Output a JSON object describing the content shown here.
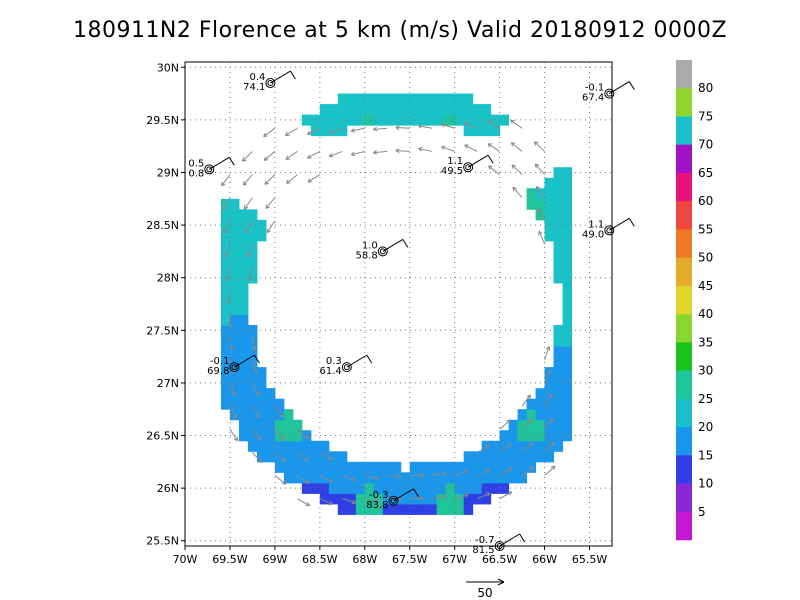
{
  "title": "180911N2 Florence at 5 km (m/s) Valid 20180912 0000Z",
  "map": {
    "lon_ticks": [
      "70W",
      "69.5W",
      "69W",
      "68.5W",
      "68W",
      "67.5W",
      "67W",
      "66.5W",
      "66W",
      "65.5W"
    ],
    "lat_ticks": [
      "25.5N",
      "26N",
      "26.5N",
      "27N",
      "27.5N",
      "28N",
      "28.5N",
      "29N",
      "29.5N",
      "30N"
    ],
    "lon_range": [
      -70,
      -65.25
    ],
    "lat_range": [
      25.45,
      30.05
    ],
    "grid": true
  },
  "colorbar": {
    "labels": [
      "5",
      "10",
      "15",
      "20",
      "25",
      "30",
      "35",
      "40",
      "45",
      "50",
      "55",
      "60",
      "65",
      "70",
      "75",
      "80"
    ],
    "colors": [
      "#c61ad0",
      "#8a28d8",
      "#2f3fe6",
      "#1897ec",
      "#18c0c8",
      "#1ec49a",
      "#1ac31a",
      "#8ad62e",
      "#e3d62a",
      "#e2ab2a",
      "#ee7a28",
      "#ee4640",
      "#e8127d",
      "#a011c5",
      "#1bc1c8",
      "#8ed62e",
      "#aaaaaa"
    ]
  },
  "stations": [
    {
      "lon": -69.05,
      "lat": 29.85,
      "top": "0.4",
      "bottom": "74.1"
    },
    {
      "lon": -69.73,
      "lat": 29.03,
      "top": "0.5",
      "bottom": "0.8"
    },
    {
      "lon": -67.8,
      "lat": 28.25,
      "top": "1.0",
      "bottom": "58.8"
    },
    {
      "lon": -66.85,
      "lat": 29.05,
      "top": "1.1",
      "bottom": "49.5"
    },
    {
      "lon": -65.28,
      "lat": 29.75,
      "top": "-0.1",
      "bottom": "67.4"
    },
    {
      "lon": -65.28,
      "lat": 28.45,
      "top": "1.1",
      "bottom": "49.0"
    },
    {
      "lon": -69.45,
      "lat": 27.15,
      "top": "-0.1",
      "bottom": "69.8"
    },
    {
      "lon": -68.2,
      "lat": 27.15,
      "top": "0.3",
      "bottom": "61.4"
    },
    {
      "lon": -67.68,
      "lat": 25.88,
      "top": "-0.3",
      "bottom": "83.8"
    },
    {
      "lon": -66.5,
      "lat": 25.45,
      "top": "-0.7",
      "bottom": "81.5"
    }
  ],
  "reference_vector": {
    "value": "50"
  }
}
